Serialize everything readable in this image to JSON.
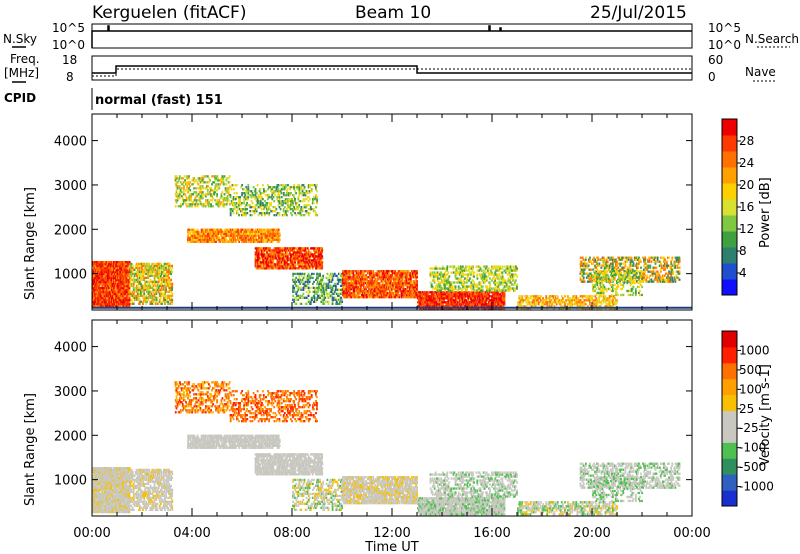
{
  "header": {
    "station": "Kerguelen (fitACF)",
    "beam": "Beam 10",
    "date": "25/Jul/2015"
  },
  "status_panel": {
    "nsky_label": "N.Sky",
    "nsearch_label": "N.Search",
    "left_ticks": [
      "10^5",
      "10^0"
    ],
    "right_ticks": [
      "10^5",
      "10^0"
    ]
  },
  "freq_panel": {
    "freq_label_1": "Freq.",
    "freq_label_2": "[MHz]",
    "nave_label": "Nave",
    "left_ticks": [
      "18",
      "8"
    ],
    "right_ticks": [
      "60",
      "0"
    ]
  },
  "cpid": {
    "label": "CPID",
    "value": "normal (fast) 151"
  },
  "chart_data": [
    {
      "type": "heatmap",
      "quantity": "Power",
      "ylabel": "Slant Range [km]",
      "ylim": [
        180,
        4600
      ],
      "yticks": [
        1000,
        2000,
        3000,
        4000
      ],
      "xlim_hours": [
        0,
        24
      ],
      "colorbar": {
        "label": "Power [dB]",
        "ticks": [
          "4",
          "8",
          "12",
          "16",
          "20",
          "24",
          "28"
        ],
        "colors": [
          "#1010ff",
          "#1f4fcf",
          "#2f7f6f",
          "#3fa03f",
          "#7fc83f",
          "#d8e030",
          "#ffd000",
          "#ffa000",
          "#ff7000",
          "#ff3a00",
          "#ee0000"
        ]
      }
    },
    {
      "type": "heatmap",
      "quantity": "Velocity",
      "ylabel": "Slant Range [km]",
      "ylim": [
        180,
        4600
      ],
      "yticks": [
        1000,
        2000,
        3000,
        4000
      ],
      "xlim_hours": [
        0,
        24
      ],
      "colorbar": {
        "label": "Velocity [m s-1]",
        "ticks": [
          "1000",
          "500",
          "100",
          "25",
          "-25",
          "-100",
          "-500",
          "-1000"
        ],
        "colors": [
          "#1a2fcf",
          "#2f60c0",
          "#2f8f5f",
          "#4fc04f",
          "#c8c8c0",
          "#c8c8c0",
          "#f8c000",
          "#ffa000",
          "#ff7000",
          "#ff2000",
          "#e00000"
        ]
      }
    }
  ],
  "xaxis": {
    "ticks": [
      "00:00",
      "04:00",
      "08:00",
      "12:00",
      "16:00",
      "20:00",
      "00:00"
    ],
    "label": "Time UT"
  }
}
